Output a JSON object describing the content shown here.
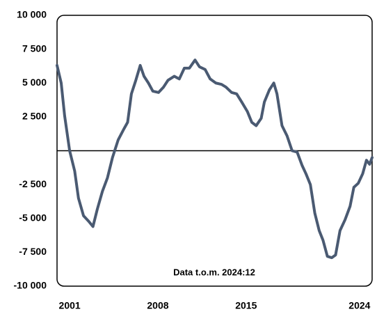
{
  "chart_data": {
    "type": "line",
    "annotation": "Data t.o.m. 2024:12",
    "x": [
      2000.0,
      2000.33,
      2000.6,
      2001.0,
      2001.4,
      2001.7,
      2002.1,
      2002.5,
      2002.85,
      2003.2,
      2003.6,
      2004.0,
      2004.4,
      2004.85,
      2005.3,
      2005.6,
      2005.9,
      2006.25,
      2006.6,
      2006.9,
      2007.25,
      2007.6,
      2008.05,
      2008.45,
      2008.8,
      2009.3,
      2009.7,
      2010.1,
      2010.5,
      2010.95,
      2011.3,
      2011.75,
      2012.15,
      2012.6,
      2013.05,
      2013.4,
      2013.85,
      2014.25,
      2014.65,
      2015.1,
      2015.45,
      2015.8,
      2016.2,
      2016.45,
      2016.85,
      2017.2,
      2017.45,
      2017.85,
      2018.25,
      2018.65,
      2019.05,
      2019.45,
      2019.75,
      2020.1,
      2020.45,
      2020.8,
      2021.1,
      2021.45,
      2021.8,
      2022.1,
      2022.45,
      2022.85,
      2023.25,
      2023.55,
      2023.9,
      2024.25,
      2024.55,
      2024.8,
      2025.0
    ],
    "series": [
      {
        "color": "#4a5a72",
        "values": [
          6300,
          5000,
          2600,
          0,
          -1500,
          -3500,
          -4800,
          -5200,
          -5600,
          -4300,
          -3000,
          -2000,
          -500,
          800,
          1600,
          2100,
          4200,
          5200,
          6300,
          5500,
          5000,
          4400,
          4300,
          4700,
          5200,
          5500,
          5300,
          6100,
          6100,
          6700,
          6200,
          6000,
          5300,
          5000,
          4900,
          4700,
          4300,
          4200,
          3600,
          2900,
          2100,
          1850,
          2400,
          3600,
          4500,
          5000,
          4200,
          1850,
          1100,
          0,
          -100,
          -1100,
          -1700,
          -2500,
          -4600,
          -5900,
          -6600,
          -7800,
          -7900,
          -7700,
          -5900,
          -5100,
          -4100,
          -2700,
          -2400,
          -1700,
          -700,
          -1000,
          -500
        ]
      }
    ],
    "xlim": [
      2000,
      2025
    ],
    "xticks": [
      2001,
      2008,
      2015,
      2024
    ],
    "ylim": [
      -10000,
      10000
    ],
    "yticks": [
      {
        "value": 10000,
        "label": "10 000"
      },
      {
        "value": 7500,
        "label": "7 500"
      },
      {
        "value": 5000,
        "label": "5 000"
      },
      {
        "value": 2500,
        "label": "2 500"
      },
      {
        "value": -2500,
        "label": "-2 500"
      },
      {
        "value": -5000,
        "label": "-5 000"
      },
      {
        "value": -7500,
        "label": "-7 500"
      },
      {
        "value": -10000,
        "label": "-10 000"
      }
    ]
  }
}
